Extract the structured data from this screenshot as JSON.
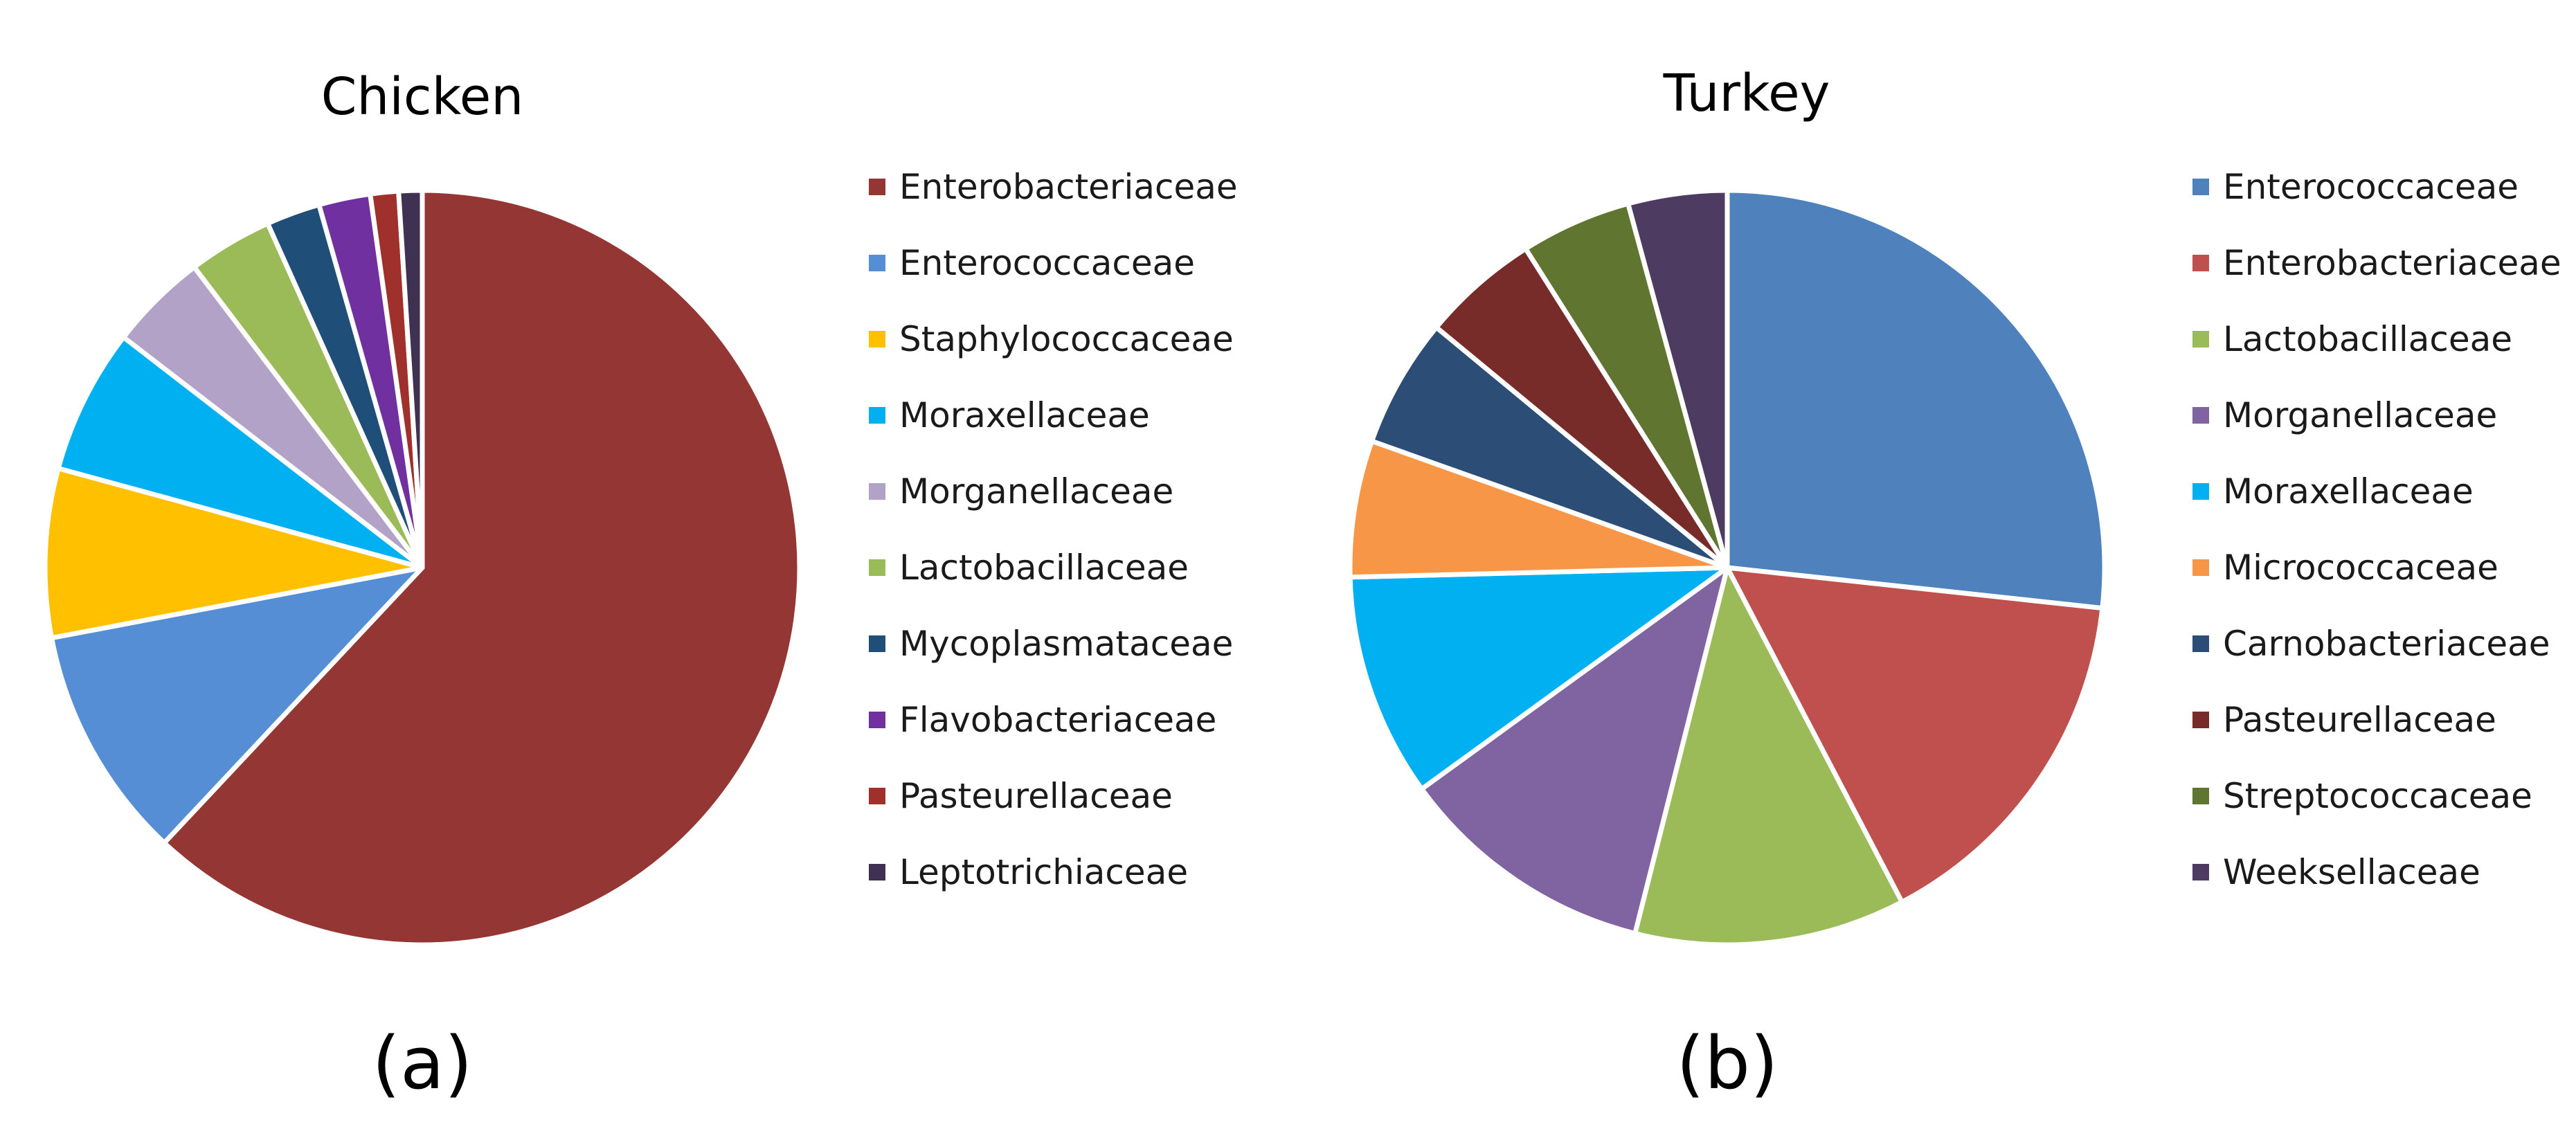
{
  "chart_data": [
    {
      "type": "pie",
      "title": "Chicken",
      "panel_label": "(a)",
      "legend_position": "right",
      "categories": [
        "Enterobacteriaceae",
        "Enterococcaceae",
        "Staphylococcaceae",
        "Moraxellaceae",
        "Morganellaceae",
        "Lactobacillaceae",
        "Mycoplasmataceae",
        "Flavobacteriaceae",
        "Pasteurellaceae",
        "Leptotrichiaceae"
      ],
      "values": [
        61.8,
        10.0,
        7.2,
        6.2,
        4.2,
        3.6,
        2.3,
        2.2,
        1.2,
        1.0
      ],
      "colors": [
        "#943634",
        "#558ED5",
        "#FFC000",
        "#00B0F0",
        "#B3A2C7",
        "#9BBB59",
        "#1F4E79",
        "#7030A0",
        "#A0302C",
        "#3F3151"
      ]
    },
    {
      "type": "pie",
      "title": "Turkey",
      "panel_label": "(b)",
      "legend_position": "right",
      "categories": [
        "Enterococcaceae",
        "Enterobacteriaceae",
        "Lactobacillaceae",
        "Morganellaceae",
        "Moraxellaceae",
        "Micrococcaceae",
        "Carnobacteriaceae",
        "Pasteurellaceae",
        "Streptococcaceae",
        "Weeksellaceae"
      ],
      "values": [
        26.5,
        15.5,
        11.5,
        11.0,
        9.5,
        5.8,
        5.5,
        5.0,
        4.7,
        4.2
      ],
      "colors": [
        "#4F81BD",
        "#C0504D",
        "#9BBB59",
        "#8064A2",
        "#00B0F0",
        "#F79646",
        "#2C4D75",
        "#772C2A",
        "#5F7530",
        "#4D3B62"
      ]
    }
  ]
}
